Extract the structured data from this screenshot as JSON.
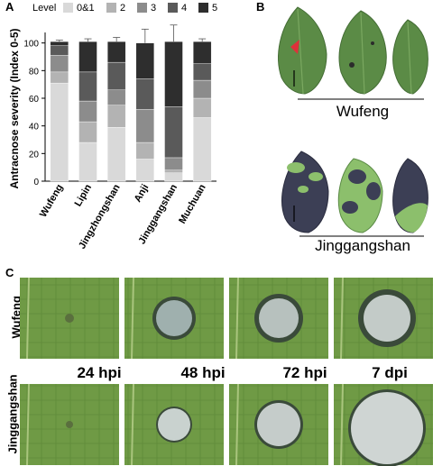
{
  "panels": {
    "a": "A",
    "b": "B",
    "c": "C"
  },
  "chart_data": {
    "type": "bar",
    "stacked": true,
    "ylabel": "Antracnose severity (Index 0-5)",
    "ylim": [
      0,
      105
    ],
    "yticks": [
      "0",
      "20",
      "40",
      "60",
      "80",
      "100"
    ],
    "categories": [
      "Wufeng",
      "Lipin",
      "Jingzhongshan",
      "Anji",
      "Jinggangshan",
      "Muchuan"
    ],
    "legend_title": "Level",
    "legend_position": "top",
    "series": [
      {
        "name": "0&1",
        "color": "#d9d9d9",
        "values": [
          71,
          28,
          39,
          16,
          6,
          46
        ],
        "err": [
          3,
          2,
          2,
          3,
          2,
          8
        ]
      },
      {
        "name": "2",
        "color": "#b3b3b3",
        "values": [
          8,
          15,
          16,
          12,
          2,
          14
        ],
        "err": [
          3,
          3,
          3,
          5,
          2,
          5
        ]
      },
      {
        "name": "3",
        "color": "#8c8c8c",
        "values": [
          12,
          15,
          11,
          24,
          9,
          13
        ],
        "err": [
          3,
          4,
          5,
          6,
          5,
          4
        ]
      },
      {
        "name": "4",
        "color": "#5a5a5a",
        "values": [
          7,
          21,
          20,
          22,
          37,
          12
        ],
        "err": [
          2,
          5,
          5,
          10,
          6,
          4
        ]
      },
      {
        "name": "5",
        "color": "#2e2e2e",
        "values": [
          3,
          22,
          15,
          26,
          47,
          16
        ],
        "err": [
          1,
          2,
          3,
          10,
          12,
          2
        ]
      }
    ]
  },
  "panel_b": {
    "cultivar_top": "Wufeng",
    "cultivar_bottom": "Jinggangshan"
  },
  "panel_c": {
    "row_top": "Wufeng",
    "row_bottom": "Jinggangshan",
    "times": [
      "24 hpi",
      "48 hpi",
      "72 hpi",
      "7 dpi"
    ]
  },
  "colors": {
    "leaf_green": "#5b8b46",
    "lesion_dark": "#3c3f55",
    "arrow_red": "#e0303a"
  }
}
